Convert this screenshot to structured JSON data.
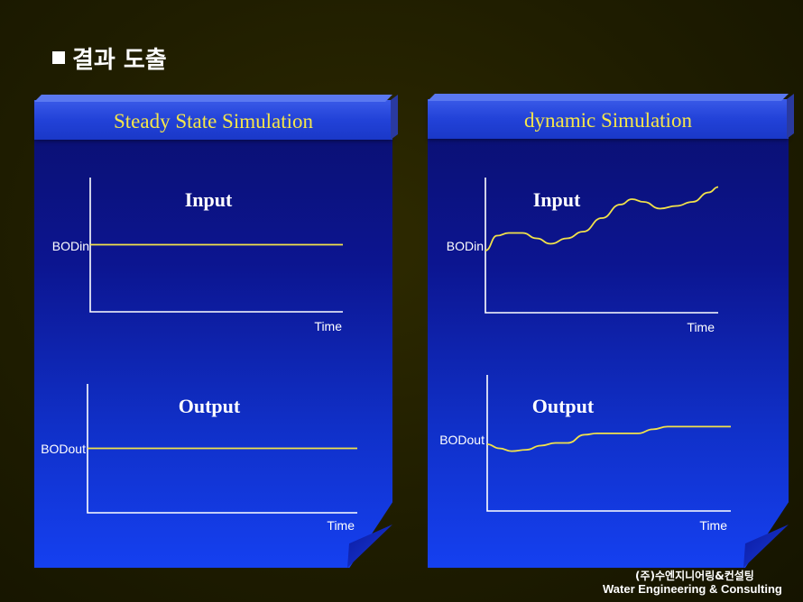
{
  "slide": {
    "title": "결과 도출",
    "footer_ko": "(주)수엔지니어링&컨설팅",
    "footer_en": "Water Engineering & Consulting"
  },
  "colors": {
    "signal": "#f2e24a",
    "panel_title": "#f5e64a",
    "axis": "#ffffff"
  },
  "panels": {
    "steady": {
      "title": "Steady State Simulation",
      "input": {
        "title": "Input",
        "ylabel": "BODin",
        "xlabel": "Time"
      },
      "output": {
        "title": "Output",
        "ylabel": "BODout",
        "xlabel": "Time"
      }
    },
    "dynamic": {
      "title": "dynamic Simulation",
      "input": {
        "title": "Input",
        "ylabel": "BODin",
        "xlabel": "Time"
      },
      "output": {
        "title": "Output",
        "ylabel": "BODout",
        "xlabel": "Time"
      }
    }
  },
  "chart_data": [
    {
      "type": "line",
      "title": "Input",
      "ylabel": "BODin",
      "xlabel": "Time",
      "x": [
        0,
        1
      ],
      "y": [
        0.5,
        0.5
      ]
    },
    {
      "type": "line",
      "title": "Output",
      "ylabel": "BODout",
      "xlabel": "Time",
      "x": [
        0,
        1
      ],
      "y": [
        0.5,
        0.5
      ]
    },
    {
      "type": "line",
      "title": "Input",
      "ylabel": "BODin",
      "xlabel": "Time",
      "x": [
        0,
        0.05,
        0.1,
        0.16,
        0.22,
        0.28,
        0.35,
        0.42,
        0.5,
        0.58,
        0.63,
        0.68,
        0.75,
        0.82,
        0.89,
        0.96,
        1.0
      ],
      "y": [
        0.46,
        0.57,
        0.59,
        0.59,
        0.55,
        0.51,
        0.55,
        0.6,
        0.7,
        0.8,
        0.84,
        0.82,
        0.77,
        0.79,
        0.82,
        0.89,
        0.93
      ]
    },
    {
      "type": "line",
      "title": "Output",
      "ylabel": "BODout",
      "xlabel": "Time",
      "x": [
        0,
        0.05,
        0.1,
        0.16,
        0.22,
        0.28,
        0.33,
        0.4,
        0.45,
        0.52,
        0.62,
        0.68,
        0.74,
        0.8,
        1.0
      ],
      "y": [
        0.49,
        0.46,
        0.44,
        0.45,
        0.48,
        0.5,
        0.5,
        0.56,
        0.57,
        0.57,
        0.57,
        0.6,
        0.62,
        0.62,
        0.62
      ]
    }
  ]
}
